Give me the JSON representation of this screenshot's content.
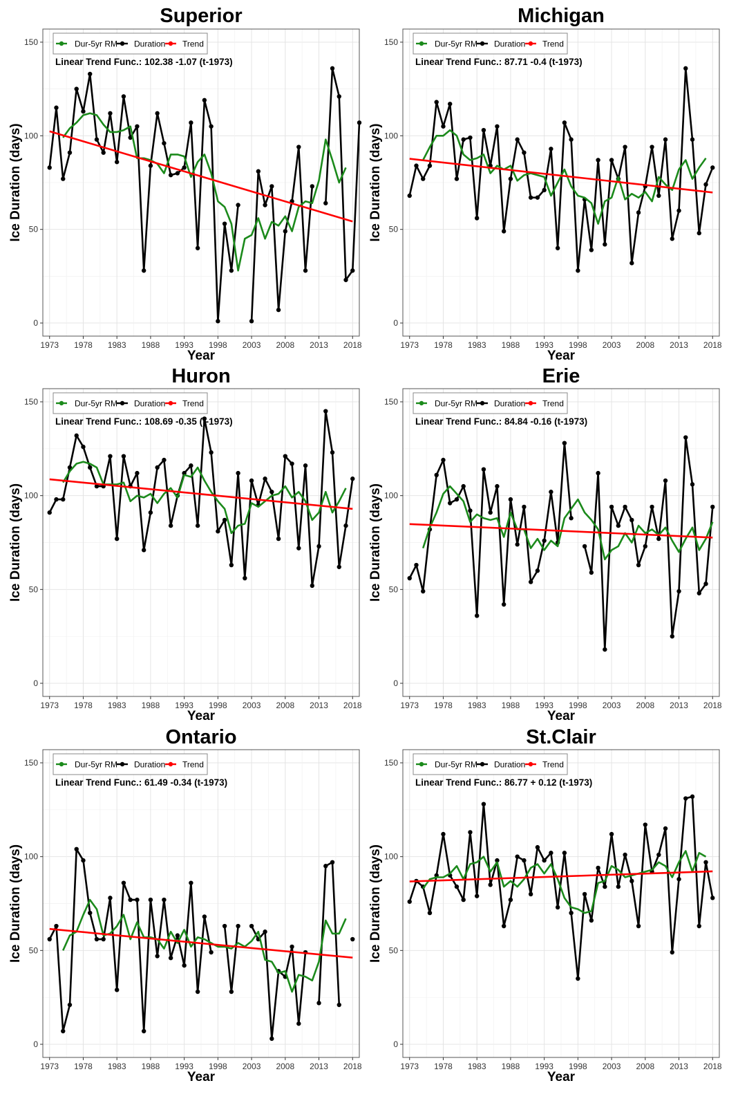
{
  "chart_data": [
    {
      "type": "line",
      "title": "Superior",
      "xlabel": "Year",
      "ylabel": "Ice Duration (days)",
      "xlim": [
        1972,
        2019
      ],
      "ylim": [
        -7,
        157
      ],
      "xticks": [
        1973,
        1978,
        1983,
        1988,
        1993,
        1998,
        2003,
        2008,
        2013,
        2018
      ],
      "yticks": [
        0,
        50,
        100,
        150
      ],
      "grid": true,
      "legend": {
        "position": "top-left",
        "entries": [
          {
            "label": "Dur-5yr RM",
            "color": "#1b8a1b"
          },
          {
            "label": "Duration",
            "color": "#000000"
          },
          {
            "label": "Trend",
            "color": "#ff0000"
          }
        ]
      },
      "annotation": "Linear Trend Func.: 102.38 -1.07 (t-1973)",
      "trend": {
        "intercept": 102.38,
        "slope": -1.07,
        "x0": 1973,
        "range": [
          1973,
          2018
        ]
      },
      "series": [
        {
          "name": "Duration",
          "color": "#000000",
          "x0": 1973,
          "values": [
            83,
            115,
            77,
            91,
            125,
            113,
            133,
            98,
            91,
            112,
            86,
            121,
            99,
            105,
            28,
            84,
            112,
            96,
            79,
            80,
            83,
            107,
            40,
            119,
            105,
            1,
            53,
            28,
            63,
            null,
            1,
            81,
            63,
            73,
            7,
            49,
            65,
            94,
            28,
            73,
            null,
            64,
            136,
            121,
            23,
            28,
            107
          ]
        },
        {
          "name": "Dur-5yr RM",
          "color": "#1b8a1b",
          "x0": 1975,
          "values": [
            99,
            104,
            107,
            111,
            112,
            111,
            106,
            102,
            102,
            103,
            105,
            88,
            88,
            87,
            85,
            80,
            90,
            90,
            89,
            78,
            86,
            90,
            80,
            65,
            62,
            53,
            28,
            45,
            47,
            56,
            45,
            54,
            52,
            57,
            49,
            62,
            65,
            64,
            76,
            98,
            87,
            75,
            83
          ]
        }
      ]
    },
    {
      "type": "line",
      "title": "Michigan",
      "xlabel": "Year",
      "ylabel": "Ice Duration (days)",
      "xlim": [
        1972,
        2019
      ],
      "ylim": [
        -7,
        157
      ],
      "xticks": [
        1973,
        1978,
        1983,
        1988,
        1993,
        1998,
        2003,
        2008,
        2013,
        2018
      ],
      "yticks": [
        0,
        50,
        100,
        150
      ],
      "grid": true,
      "legend": {
        "position": "top-left",
        "entries": [
          {
            "label": "Dur-5yr RM",
            "color": "#1b8a1b"
          },
          {
            "label": "Duration",
            "color": "#000000"
          },
          {
            "label": "Trend",
            "color": "#ff0000"
          }
        ]
      },
      "annotation": "Linear Trend Func.: 87.71 -0.4 (t-1973)",
      "trend": {
        "intercept": 87.71,
        "slope": -0.4,
        "x0": 1973,
        "range": [
          1973,
          2018
        ]
      },
      "series": [
        {
          "name": "Duration",
          "color": "#000000",
          "x0": 1973,
          "values": [
            68,
            84,
            77,
            84,
            118,
            105,
            117,
            77,
            98,
            99,
            56,
            103,
            84,
            105,
            49,
            77,
            98,
            91,
            67,
            67,
            71,
            93,
            40,
            107,
            98,
            28,
            66,
            39,
            87,
            42,
            87,
            77,
            94,
            32,
            59,
            73,
            94,
            68,
            98,
            45,
            60,
            136,
            98,
            48,
            74,
            83
          ]
        },
        {
          "name": "Dur-5yr RM",
          "color": "#1b8a1b",
          "x0": 1975,
          "values": [
            87,
            94,
            100,
            100,
            103,
            100,
            90,
            87,
            88,
            90,
            80,
            84,
            82,
            84,
            76,
            79,
            80,
            79,
            78,
            68,
            75,
            82,
            73,
            68,
            67,
            64,
            53,
            65,
            67,
            78,
            66,
            69,
            67,
            70,
            65,
            78,
            74,
            71,
            82,
            87,
            77,
            83,
            88
          ]
        }
      ]
    },
    {
      "type": "line",
      "title": "Huron",
      "xlabel": "Year",
      "ylabel": "Ice Duration (days)",
      "xlim": [
        1972,
        2019
      ],
      "ylim": [
        -7,
        157
      ],
      "xticks": [
        1973,
        1978,
        1983,
        1988,
        1993,
        1998,
        2003,
        2008,
        2013,
        2018
      ],
      "yticks": [
        0,
        50,
        100,
        150
      ],
      "grid": true,
      "legend": {
        "position": "top-left",
        "entries": [
          {
            "label": "Dur-5yr RM",
            "color": "#1b8a1b"
          },
          {
            "label": "Duration",
            "color": "#000000"
          },
          {
            "label": "Trend",
            "color": "#ff0000"
          }
        ]
      },
      "annotation": "Linear Trend Func.: 108.69 -0.35 (t-1973)",
      "trend": {
        "intercept": 108.69,
        "slope": -0.35,
        "x0": 1973,
        "range": [
          1973,
          2018
        ]
      },
      "series": [
        {
          "name": "Duration",
          "color": "#000000",
          "x0": 1973,
          "values": [
            91,
            98,
            98,
            115,
            132,
            126,
            115,
            105,
            105,
            121,
            77,
            121,
            105,
            112,
            71,
            91,
            115,
            119,
            84,
            100,
            112,
            116,
            84,
            141,
            123,
            81,
            87,
            63,
            112,
            56,
            108,
            95,
            109,
            102,
            77,
            121,
            117,
            72,
            116,
            52,
            73,
            145,
            123,
            62,
            84,
            109
          ]
        },
        {
          "name": "Dur-5yr RM",
          "color": "#1b8a1b",
          "x0": 1975,
          "values": [
            107,
            113,
            117,
            118,
            117,
            115,
            106,
            106,
            106,
            107,
            97,
            100,
            99,
            101,
            96,
            101,
            104,
            99,
            111,
            110,
            115,
            108,
            102,
            97,
            93,
            80,
            84,
            85,
            96,
            94,
            97,
            100,
            101,
            105,
            99,
            102,
            97,
            87,
            91,
            102,
            91,
            97,
            104
          ]
        }
      ]
    },
    {
      "type": "line",
      "title": "Erie",
      "xlabel": "Year",
      "ylabel": "Ice Duration (days)",
      "xlim": [
        1972,
        2019
      ],
      "ylim": [
        -7,
        157
      ],
      "xticks": [
        1973,
        1978,
        1983,
        1988,
        1993,
        1998,
        2003,
        2008,
        2013,
        2018
      ],
      "yticks": [
        0,
        50,
        100,
        150
      ],
      "grid": true,
      "legend": {
        "position": "top-left",
        "entries": [
          {
            "label": "Dur-5yr RM",
            "color": "#1b8a1b"
          },
          {
            "label": "Duration",
            "color": "#000000"
          },
          {
            "label": "Trend",
            "color": "#ff0000"
          }
        ]
      },
      "annotation": "Linear Trend Func.: 84.84 -0.16 (t-1973)",
      "trend": {
        "intercept": 84.84,
        "slope": -0.16,
        "x0": 1973,
        "range": [
          1973,
          2018
        ]
      },
      "series": [
        {
          "name": "Duration",
          "color": "#000000",
          "x0": 1973,
          "values": [
            56,
            63,
            49,
            82,
            111,
            119,
            96,
            98,
            105,
            92,
            36,
            114,
            91,
            105,
            42,
            98,
            74,
            94,
            54,
            60,
            76,
            102,
            75,
            128,
            88,
            null,
            73,
            59,
            112,
            18,
            94,
            84,
            94,
            87,
            63,
            73,
            94,
            77,
            108,
            25,
            49,
            131,
            106,
            48,
            53,
            94
          ]
        },
        {
          "name": "Dur-5yr RM",
          "color": "#1b8a1b",
          "x0": 1975,
          "values": [
            72,
            83,
            91,
            101,
            105,
            101,
            97,
            86,
            90,
            88,
            87,
            88,
            78,
            91,
            82,
            82,
            72,
            77,
            71,
            76,
            73,
            88,
            93,
            98,
            91,
            87,
            82,
            66,
            71,
            73,
            80,
            75,
            84,
            80,
            82,
            79,
            83,
            76,
            70,
            77,
            83,
            71,
            77,
            86
          ]
        }
      ]
    },
    {
      "type": "line",
      "title": "Ontario",
      "xlabel": "Year",
      "ylabel": "Ice Duration (days)",
      "xlim": [
        1972,
        2019
      ],
      "ylim": [
        -7,
        157
      ],
      "xticks": [
        1973,
        1978,
        1983,
        1988,
        1993,
        1998,
        2003,
        2008,
        2013,
        2018
      ],
      "yticks": [
        0,
        50,
        100,
        150
      ],
      "grid": true,
      "legend": {
        "position": "top-left",
        "entries": [
          {
            "label": "Dur-5yr RM",
            "color": "#1b8a1b"
          },
          {
            "label": "Duration",
            "color": "#000000"
          },
          {
            "label": "Trend",
            "color": "#ff0000"
          }
        ]
      },
      "annotation": "Linear Trend Func.: 61.49 -0.34 (t-1973)",
      "trend": {
        "intercept": 61.49,
        "slope": -0.34,
        "x0": 1973,
        "range": [
          1973,
          2018
        ]
      },
      "series": [
        {
          "name": "Duration",
          "color": "#000000",
          "x0": 1973,
          "values": [
            56,
            63,
            7,
            21,
            104,
            98,
            70,
            56,
            56,
            78,
            29,
            86,
            77,
            77,
            7,
            77,
            47,
            77,
            46,
            58,
            42,
            86,
            28,
            68,
            49,
            null,
            63,
            28,
            63,
            null,
            63,
            56,
            60,
            3,
            39,
            36,
            52,
            11,
            49,
            null,
            22,
            95,
            97,
            21,
            null,
            56
          ]
        },
        {
          "name": "Dur-5yr RM",
          "color": "#1b8a1b",
          "x0": 1975,
          "values": [
            50,
            58,
            60,
            69,
            77,
            72,
            58,
            59,
            63,
            69,
            56,
            65,
            57,
            57,
            56,
            51,
            60,
            54,
            61,
            52,
            57,
            56,
            54,
            52,
            52,
            51,
            54,
            52,
            55,
            60,
            45,
            44,
            38,
            39,
            28,
            37,
            36,
            34,
            44,
            66,
            59,
            59,
            67
          ]
        }
      ]
    },
    {
      "type": "line",
      "title": "St.Clair",
      "xlabel": "Year",
      "ylabel": "Ice Duration (days)",
      "xlim": [
        1972,
        2019
      ],
      "ylim": [
        -7,
        157
      ],
      "xticks": [
        1973,
        1978,
        1983,
        1988,
        1993,
        1998,
        2003,
        2008,
        2013,
        2018
      ],
      "yticks": [
        0,
        50,
        100,
        150
      ],
      "grid": true,
      "legend": {
        "position": "top-left",
        "entries": [
          {
            "label": "Dur-5yr RM",
            "color": "#1b8a1b"
          },
          {
            "label": "Duration",
            "color": "#000000"
          },
          {
            "label": "Trend",
            "color": "#ff0000"
          }
        ]
      },
      "annotation": "Linear Trend Func.: 86.77 + 0.12 (t-1973)",
      "trend": {
        "intercept": 86.77,
        "slope": 0.12,
        "x0": 1973,
        "range": [
          1973,
          2018
        ]
      },
      "series": [
        {
          "name": "Duration",
          "color": "#000000",
          "x0": 1973,
          "values": [
            76,
            87,
            84,
            70,
            90,
            112,
            90,
            84,
            77,
            113,
            79,
            128,
            85,
            98,
            63,
            77,
            100,
            98,
            80,
            105,
            98,
            102,
            73,
            102,
            70,
            35,
            80,
            66,
            94,
            84,
            112,
            84,
            101,
            87,
            63,
            117,
            92,
            101,
            115,
            49,
            88,
            131,
            132,
            63,
            97,
            78
          ]
        },
        {
          "name": "Dur-5yr RM",
          "color": "#1b8a1b",
          "x0": 1975,
          "values": [
            83,
            88,
            89,
            89,
            91,
            95,
            88,
            96,
            97,
            100,
            92,
            97,
            84,
            87,
            84,
            88,
            94,
            96,
            91,
            96,
            88,
            78,
            73,
            72,
            70,
            71,
            86,
            87,
            95,
            93,
            89,
            90,
            91,
            92,
            93,
            97,
            95,
            89,
            97,
            103,
            92,
            102,
            100
          ]
        }
      ]
    }
  ]
}
